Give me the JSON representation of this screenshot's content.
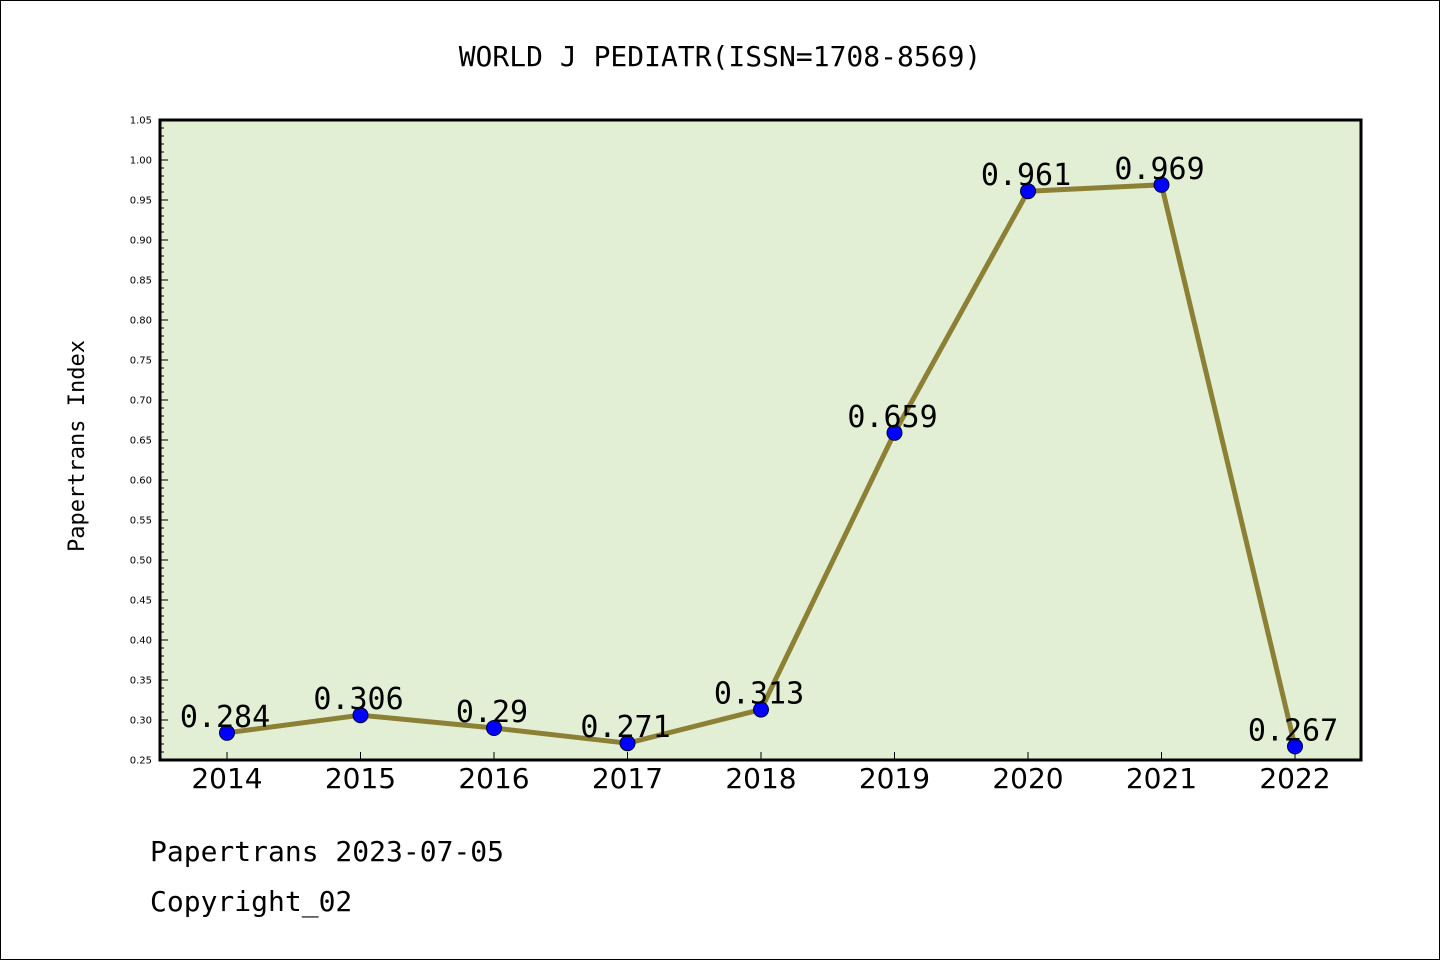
{
  "chart_data": {
    "type": "line",
    "title": "WORLD J PEDIATR(ISSN=1708-8569)",
    "ylabel": "Papertrans Index",
    "xlabel": "",
    "categories": [
      "2014",
      "2015",
      "2016",
      "2017",
      "2018",
      "2019",
      "2020",
      "2021",
      "2022"
    ],
    "values": [
      0.284,
      0.306,
      0.29,
      0.271,
      0.313,
      0.659,
      0.961,
      0.969,
      0.267
    ],
    "data_labels": [
      "0.284",
      "0.306",
      "0.29",
      "0.271",
      "0.313",
      "0.659",
      "0.961",
      "0.969",
      "0.267"
    ],
    "ylim": [
      0.25,
      1.05
    ],
    "yticks": [
      "0.25",
      "0.30",
      "0.35",
      "0.40",
      "0.45",
      "0.50",
      "0.55",
      "0.60",
      "0.65",
      "0.70",
      "0.75",
      "0.80",
      "0.85",
      "0.90",
      "0.95",
      "1.00",
      "1.05"
    ],
    "grid": false,
    "colors": {
      "plot_background": "#e2efd4",
      "line": "#8c8034",
      "marker": "#0000ff"
    }
  },
  "footer": {
    "date_line": "Papertrans 2023-07-05",
    "copyright_line": "Copyright_02"
  }
}
